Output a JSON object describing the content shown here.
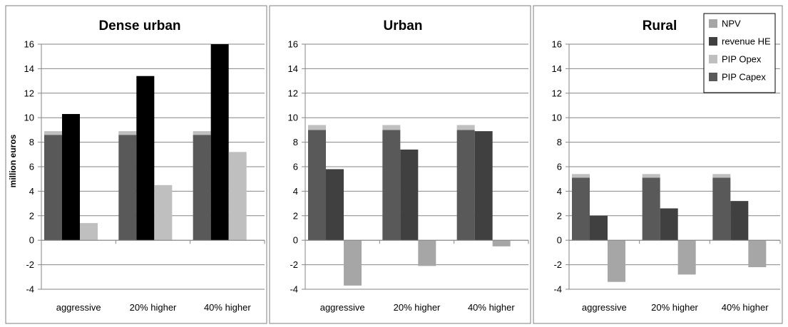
{
  "chart_data": [
    {
      "type": "bar",
      "title": "Dense urban",
      "ylabel": "million euros",
      "xlabel": "",
      "ylim": [
        -4,
        16
      ],
      "yticks": [
        -4,
        -2,
        0,
        2,
        4,
        6,
        8,
        10,
        12,
        14,
        16
      ],
      "grid": true,
      "categories": [
        "aggressive",
        "20% higher",
        "40% higher"
      ],
      "stacked_bar": {
        "series": [
          {
            "name": "PIP Capex",
            "values": [
              8.6,
              8.6,
              8.6
            ]
          },
          {
            "name": "PIP Opex",
            "values": [
              0.3,
              0.3,
              0.3
            ]
          }
        ]
      },
      "series": [
        {
          "name": "revenue HE",
          "values": [
            10.3,
            13.4,
            16.0
          ]
        },
        {
          "name": "NPV",
          "values": [
            1.4,
            4.5,
            7.2
          ]
        }
      ]
    },
    {
      "type": "bar",
      "title": "Urban",
      "ylabel": "",
      "xlabel": "",
      "ylim": [
        -4,
        16
      ],
      "yticks": [
        -4,
        -2,
        0,
        2,
        4,
        6,
        8,
        10,
        12,
        14,
        16
      ],
      "grid": true,
      "categories": [
        "aggressive",
        "20% higher",
        "40% higher"
      ],
      "stacked_bar": {
        "series": [
          {
            "name": "PIP Capex",
            "values": [
              9.0,
              9.0,
              9.0
            ]
          },
          {
            "name": "PIP Opex",
            "values": [
              0.4,
              0.4,
              0.4
            ]
          }
        ]
      },
      "series": [
        {
          "name": "revenue HE",
          "values": [
            5.8,
            7.4,
            8.9
          ]
        },
        {
          "name": "NPV",
          "values": [
            -3.7,
            -2.1,
            -0.5
          ]
        }
      ]
    },
    {
      "type": "bar",
      "title": "Rural",
      "ylabel": "",
      "xlabel": "",
      "ylim": [
        -4,
        16
      ],
      "yticks": [
        -4,
        -2,
        0,
        2,
        4,
        6,
        8,
        10,
        12,
        14,
        16
      ],
      "grid": true,
      "categories": [
        "aggressive",
        "20% higher",
        "40% higher"
      ],
      "stacked_bar": {
        "series": [
          {
            "name": "PIP Capex",
            "values": [
              5.1,
              5.1,
              5.1
            ]
          },
          {
            "name": "PIP Opex",
            "values": [
              0.3,
              0.3,
              0.3
            ]
          }
        ]
      },
      "series": [
        {
          "name": "revenue HE",
          "values": [
            2.0,
            2.6,
            3.2
          ]
        },
        {
          "name": "NPV",
          "values": [
            -3.4,
            -2.8,
            -2.2
          ]
        }
      ]
    }
  ],
  "legend": {
    "placement": "top-right",
    "items": [
      {
        "label": "NPV",
        "color": "#a6a6a6"
      },
      {
        "label": "revenue HE",
        "color": "#404040"
      },
      {
        "label": "PIP Opex",
        "color": "#bfbfbf"
      },
      {
        "label": "PIP Capex",
        "color": "#595959"
      }
    ]
  },
  "colors": {
    "capex": "#595959",
    "opex": "#bfbfbf",
    "npv": "#a6a6a6",
    "revenue_dense": "#000000",
    "revenue_other": "#404040",
    "npv_dense_light": "#bfbfbf",
    "grid": "#868686",
    "axis": "#868686",
    "panel_border": "#7f7f7f"
  }
}
